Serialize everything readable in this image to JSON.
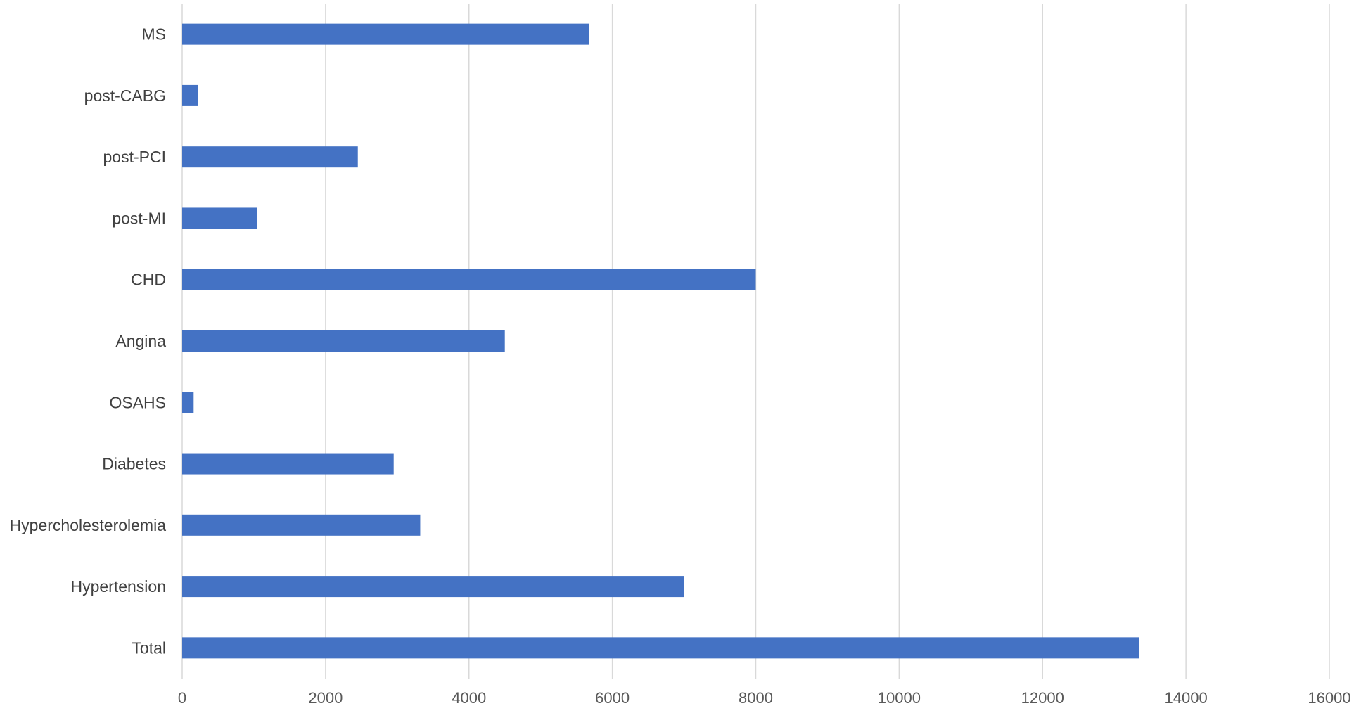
{
  "chart_data": {
    "type": "bar",
    "orientation": "horizontal",
    "title": "",
    "xlabel": "",
    "ylabel": "",
    "categories": [
      "MS",
      "post-CABG",
      "post-PCI",
      "post-MI",
      "CHD",
      "Angina",
      "OSAHS",
      "Diabetes",
      "Hypercholesterolemia",
      "Hypertension",
      "Total"
    ],
    "values": [
      5680,
      220,
      2450,
      1040,
      8000,
      4500,
      160,
      2950,
      3320,
      7000,
      13350
    ],
    "xlim": [
      0,
      16000
    ],
    "xticks": [
      "0",
      "2000",
      "4000",
      "6000",
      "8000",
      "10000",
      "12000",
      "14000",
      "16000"
    ],
    "grid": "vertical",
    "legend": "none",
    "bar_color": "#4472C4",
    "grid_color": "#D9D9D9"
  }
}
